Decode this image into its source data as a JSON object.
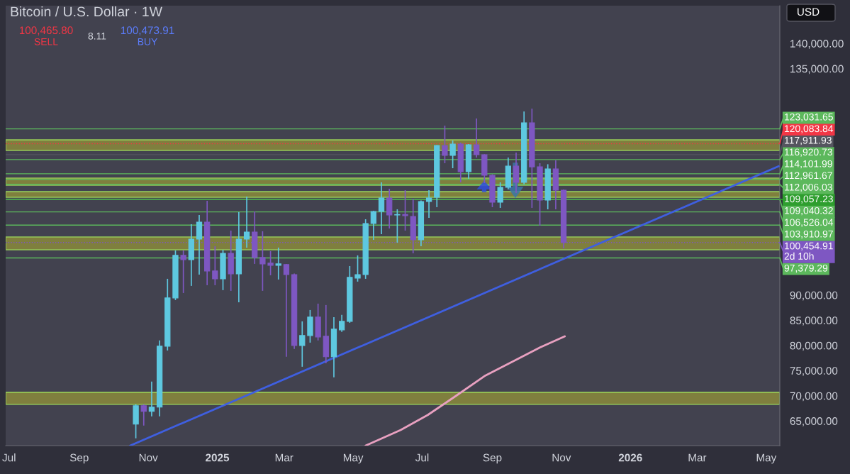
{
  "chart_data": {
    "type": "candlestick",
    "title": "Bitcoin / U.S. Dollar · 1W",
    "x": [
      "2024-10-21",
      "2024-10-28",
      "2024-11-04",
      "2024-11-11",
      "2024-11-18",
      "2024-11-25",
      "2024-12-02",
      "2024-12-09",
      "2024-12-16",
      "2024-12-23",
      "2024-12-30",
      "2025-01-06",
      "2025-01-13",
      "2025-01-20",
      "2025-01-27",
      "2025-02-03",
      "2025-02-10",
      "2025-02-17",
      "2025-02-24",
      "2025-03-03",
      "2025-03-10",
      "2025-03-17",
      "2025-03-24",
      "2025-03-31",
      "2025-04-07",
      "2025-04-14",
      "2025-04-21",
      "2025-04-28",
      "2025-05-05",
      "2025-05-12",
      "2025-05-19",
      "2025-05-26",
      "2025-06-02",
      "2025-06-09",
      "2025-06-16",
      "2025-06-23",
      "2025-06-30",
      "2025-07-07",
      "2025-07-14",
      "2025-07-21",
      "2025-07-28",
      "2025-08-04",
      "2025-08-11",
      "2025-08-18",
      "2025-08-25",
      "2025-09-01",
      "2025-09-08",
      "2025-09-15",
      "2025-09-22",
      "2025-09-29",
      "2025-10-06",
      "2025-10-13",
      "2025-10-20",
      "2025-10-27",
      "2025-11-03"
    ],
    "ohlc": [
      [
        64370,
        68300,
        61550,
        68030
      ],
      [
        68030,
        68300,
        64080,
        66900
      ],
      [
        66900,
        72820,
        65920,
        67750
      ],
      [
        67750,
        80990,
        65920,
        79860
      ],
      [
        79860,
        93240,
        79000,
        89440
      ],
      [
        89440,
        98870,
        89010,
        97890
      ],
      [
        97890,
        98870,
        90420,
        97040
      ],
      [
        97040,
        104090,
        91830,
        101130
      ],
      [
        101130,
        105900,
        94080,
        104510
      ],
      [
        104510,
        108730,
        91970,
        94790
      ],
      [
        94790,
        99720,
        91970,
        93240
      ],
      [
        93240,
        99000,
        90990,
        98310
      ],
      [
        98310,
        102820,
        90850,
        94230
      ],
      [
        94230,
        106480,
        88590,
        101130
      ],
      [
        101130,
        109580,
        99440,
        102540
      ],
      [
        102540,
        106620,
        96200,
        97470
      ],
      [
        97470,
        102680,
        90850,
        96200
      ],
      [
        96340,
        98730,
        93940,
        95920
      ],
      [
        95920,
        99440,
        93100,
        96200
      ],
      [
        96060,
        96200,
        77750,
        94080
      ],
      [
        94080,
        94300,
        79300,
        80000
      ],
      [
        80000,
        84790,
        75770,
        81970
      ],
      [
        81970,
        87040,
        80560,
        85630
      ],
      [
        85630,
        88310,
        80990,
        81690
      ],
      [
        81830,
        88030,
        76480,
        77750
      ],
      [
        77750,
        85630,
        73660,
        83240
      ],
      [
        83100,
        86060,
        82680,
        84790
      ],
      [
        84790,
        95770,
        84500,
        93520
      ],
      [
        93380,
        97890,
        92680,
        94080
      ],
      [
        94080,
        105070,
        93240,
        104230
      ],
      [
        104230,
        106760,
        100990,
        106620
      ],
      [
        106620,
        112400,
        102110,
        109300
      ],
      [
        109300,
        111130,
        103240,
        105920
      ],
      [
        105920,
        107040,
        100420,
        106000
      ],
      [
        106000,
        110850,
        102820,
        105780
      ],
      [
        105630,
        109160,
        98310,
        100990
      ],
      [
        100990,
        108800,
        99720,
        108590
      ],
      [
        108590,
        110850,
        105350,
        109300
      ],
      [
        109440,
        119800,
        107470,
        119720
      ],
      [
        119720,
        123660,
        116200,
        117750
      ],
      [
        117750,
        120700,
        115210,
        120000
      ],
      [
        120000,
        120300,
        112400,
        114510
      ],
      [
        114510,
        120000,
        113100,
        119860
      ],
      [
        119860,
        125070,
        117330,
        117890
      ],
      [
        117890,
        118000,
        112250,
        113800
      ],
      [
        113800,
        114000,
        107470,
        108450
      ],
      [
        108450,
        112400,
        107330,
        111410
      ],
      [
        111410,
        117330,
        110990,
        115630
      ],
      [
        115630,
        118310,
        110280,
        112400
      ],
      [
        112400,
        126480,
        112000,
        124230
      ],
      [
        124230,
        127040,
        107330,
        115490
      ],
      [
        115490,
        116200,
        103800,
        108870
      ],
      [
        108870,
        116000,
        107040,
        115070
      ],
      [
        115070,
        116760,
        107040,
        110850
      ],
      [
        110850,
        111000,
        99300,
        100455
      ]
    ],
    "colors": [
      "#5ec8e0",
      "#7e57c2",
      "#5ec8e0",
      "#5ec8e0",
      "#5ec8e0",
      "#5ec8e0",
      "#7e57c2",
      "#5ec8e0",
      "#5ec8e0",
      "#7e57c2",
      "#7e57c2",
      "#5ec8e0",
      "#7e57c2",
      "#5ec8e0",
      "#5ec8e0",
      "#7e57c2",
      "#7e57c2",
      "#7e57c2",
      "#5ec8e0",
      "#7e57c2",
      "#7e57c2",
      "#5ec8e0",
      "#5ec8e0",
      "#7e57c2",
      "#7e57c2",
      "#5ec8e0",
      "#5ec8e0",
      "#5ec8e0",
      "#5ec8e0",
      "#5ec8e0",
      "#5ec8e0",
      "#5ec8e0",
      "#7e57c2",
      "#5ec8e0",
      "#7e57c2",
      "#7e57c2",
      "#5ec8e0",
      "#5ec8e0",
      "#5ec8e0",
      "#7e57c2",
      "#5ec8e0",
      "#7e57c2",
      "#5ec8e0",
      "#7e57c2",
      "#7e57c2",
      "#7e57c2",
      "#5ec8e0",
      "#5ec8e0",
      "#7e57c2",
      "#5ec8e0",
      "#7e57c2",
      "#7e57c2",
      "#5ec8e0",
      "#7e57c2",
      "#7e57c2"
    ],
    "series": [
      {
        "type": "line",
        "color": "#3f5fe0",
        "x": [
          "2024-10-16",
          "2026-05-12"
        ],
        "values": [
          60100,
          115600
        ]
      },
      {
        "type": "line",
        "color": "#e8a0c0",
        "x": [
          "2025-05-12",
          "2025-06-12",
          "2025-07-06",
          "2025-07-31",
          "2025-08-25",
          "2025-09-19",
          "2025-10-13",
          "2025-11-04"
        ],
        "values": [
          60100,
          63200,
          66200,
          70000,
          73900,
          76800,
          79600,
          81800
        ]
      }
    ],
    "bands": [
      {
        "axis": "y",
        "from": 118740,
        "to": 120850,
        "color": "#8a8a3c"
      },
      {
        "axis": "y",
        "from": 111830,
        "to": 113240,
        "color": "#8a8a3c"
      },
      {
        "axis": "y",
        "from": 109440,
        "to": 110560,
        "color": "#8a8a3c"
      },
      {
        "axis": "y",
        "from": 99010,
        "to": 101550,
        "color": "#8a8a3c"
      },
      {
        "axis": "y",
        "from": 68310,
        "to": 70700,
        "color": "#8a8a3c"
      }
    ],
    "ref_lines": [
      {
        "axis": "y",
        "value": 123031.65,
        "label": "123,031.65",
        "color": "#5cb85c",
        "line_style": "solid"
      },
      {
        "axis": "y",
        "value": 120083.84,
        "label": "120,083.84",
        "color": "#f23645",
        "line_style": "dotted"
      },
      {
        "axis": "y",
        "value": 117911.93,
        "label": "117,911.93",
        "color": "#55555f",
        "line_style": "solid"
      },
      {
        "axis": "y",
        "value": 116920.73,
        "label": "116,920.73",
        "color": "#5cb85c",
        "line_style": "solid"
      },
      {
        "axis": "y",
        "value": 114101.99,
        "label": "114,101.99",
        "color": "#5cb85c",
        "line_style": "solid"
      },
      {
        "axis": "y",
        "value": 112961.67,
        "label": "112,961.67",
        "color": "#5cb85c",
        "line_style": "solid"
      },
      {
        "axis": "y",
        "value": 112006.03,
        "label": "112,006.03",
        "color": "#5cb85c",
        "line_style": "solid"
      },
      {
        "axis": "y",
        "value": 109057.23,
        "label": "109,057.23",
        "color": "#2e9e2e",
        "line_style": "solid"
      },
      {
        "axis": "y",
        "value": 109040.32,
        "label": "109,040.32",
        "color": "#5cb85c",
        "line_style": "solid"
      },
      {
        "axis": "y",
        "value": 106526.04,
        "label": "106,526.04",
        "color": "#5cb85c",
        "line_style": "solid"
      },
      {
        "axis": "y",
        "value": 103910.97,
        "label": "103,910.97",
        "color": "#5cb85c",
        "line_style": "solid"
      },
      {
        "axis": "y",
        "value": 100454.91,
        "label": "100,454.91\n2d 10h",
        "color": "#7e57c2",
        "line_style": "dotted"
      },
      {
        "axis": "y",
        "value": 97379.29,
        "label": "97,379.29",
        "color": "#5cb85c",
        "line_style": "solid"
      }
    ],
    "xlim": [
      "2024-06-28",
      "2026-05-13"
    ],
    "xticks": [
      {
        "value": "2024-07-01",
        "label": "Jul"
      },
      {
        "value": "2024-09-01",
        "label": "Sep"
      },
      {
        "value": "2024-11-01",
        "label": "Nov"
      },
      {
        "value": "2025-01-01",
        "label": "2025"
      },
      {
        "value": "2025-03-01",
        "label": "Mar"
      },
      {
        "value": "2025-05-01",
        "label": "May"
      },
      {
        "value": "2025-07-01",
        "label": "Jul"
      },
      {
        "value": "2025-09-01",
        "label": "Sep"
      },
      {
        "value": "2025-11-01",
        "label": "Nov"
      },
      {
        "value": "2026-01-01",
        "label": "2026"
      },
      {
        "value": "2026-03-01",
        "label": "Mar"
      },
      {
        "value": "2026-05-01",
        "label": "May"
      }
    ],
    "ylim": [
      60100,
      147500
    ],
    "yticks": [
      {
        "value": 140000,
        "label": "140,000.00"
      },
      {
        "value": 135000,
        "label": "135,000.00"
      },
      {
        "value": 90000,
        "label": "90,000.00"
      },
      {
        "value": 85000,
        "label": "85,000.00"
      },
      {
        "value": 80000,
        "label": "80,000.00"
      },
      {
        "value": 75000,
        "label": "75,000.00"
      },
      {
        "value": 70000,
        "label": "70,000.00"
      },
      {
        "value": 65000,
        "label": "65,000.00"
      }
    ],
    "annotations": [
      "100,465.80",
      "SELL",
      "8.11",
      "100,473.91",
      "BUY",
      "USD"
    ],
    "grid": false,
    "legend": "right"
  }
}
